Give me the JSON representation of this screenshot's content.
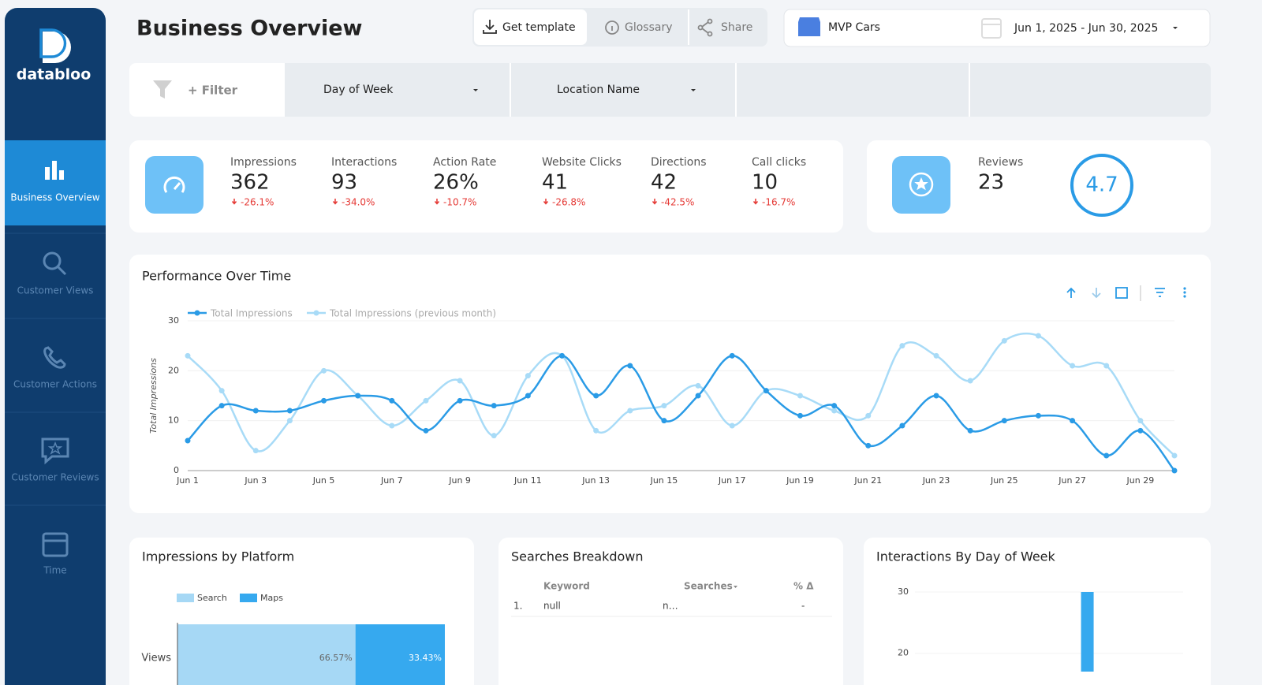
{
  "sidebar": {
    "brand": "databloo",
    "items": [
      "Business Overview",
      "Customer Views",
      "Customer Actions",
      "Customer Reviews",
      "Time"
    ]
  },
  "header": {
    "title": "Business Overview",
    "buttons": [
      "Get template",
      "Glossary",
      "Share"
    ],
    "account": "MVP Cars",
    "date_range": "Jun 1, 2025 - Jun 30, 2025"
  },
  "filters": {
    "add": "+ Filter",
    "dropdowns": [
      "Day of Week",
      "Location Name"
    ]
  },
  "kpis": [
    {
      "label": "Impressions",
      "value": "362",
      "change": "-26.1%"
    },
    {
      "label": "Interactions",
      "value": "93",
      "change": "-34.0%"
    },
    {
      "label": "Action Rate",
      "value": "26%",
      "change": "-10.7%"
    },
    {
      "label": "Website Clicks",
      "value": "41",
      "change": "-26.8%"
    },
    {
      "label": "Directions",
      "value": "42",
      "change": "-42.5%"
    },
    {
      "label": "Call clicks",
      "value": "10",
      "change": "-16.7%"
    }
  ],
  "reviews": {
    "label": "Reviews",
    "value": "23",
    "rating": "4.7"
  },
  "searches_table": {
    "title": "Searches Breakdown",
    "columns": [
      "Keyword",
      "Searches",
      "% Δ"
    ],
    "rows": [
      [
        "1.",
        "null",
        "n…",
        "-"
      ]
    ]
  },
  "chart_data": [
    {
      "type": "line",
      "title": "Performance Over Time",
      "y_label": "Total Impressions",
      "legend": "top-left",
      "grid": true,
      "categories": [
        "Jun 1",
        null,
        "Jun 3",
        null,
        "Jun 5",
        null,
        "Jun 7",
        null,
        "Jun 9",
        null,
        "Jun 11",
        null,
        "Jun 13",
        null,
        "Jun 15",
        null,
        "Jun 17",
        null,
        "Jun 19",
        null,
        "Jun 21",
        null,
        "Jun 23",
        null,
        "Jun 25",
        null,
        "Jun 27",
        null,
        "Jun 29",
        null
      ],
      "series": [
        {
          "name": "Total Impressions",
          "color": "#2a9be6",
          "values": [
            6,
            13,
            12,
            12,
            14,
            15,
            14,
            8,
            14,
            13,
            15,
            23,
            15,
            21,
            10,
            15,
            23,
            16,
            11,
            13,
            5,
            9,
            15,
            8,
            10,
            11,
            10,
            3,
            8,
            0
          ]
        },
        {
          "name": "Total Impressions (previous month)",
          "color": "#a8dbf7",
          "values": [
            23,
            16,
            4,
            10,
            20,
            15,
            9,
            14,
            18,
            7,
            19,
            23,
            8,
            12,
            13,
            17,
            9,
            16,
            15,
            12,
            11,
            25,
            23,
            18,
            26,
            27,
            21,
            21,
            10,
            3
          ]
        }
      ],
      "ylim": [
        0,
        30
      ],
      "yticks": [
        0,
        10,
        20,
        30
      ]
    },
    {
      "type": "bar",
      "orientation": "horizontal",
      "stacked": true,
      "title": "Impressions by Platform",
      "categories": [
        "Views"
      ],
      "series": [
        {
          "name": "Search",
          "color": "#a6d8f5",
          "values": [
            66.57
          ],
          "value_labels": [
            "66.57%"
          ]
        },
        {
          "name": "Maps",
          "color": "#36a9ef",
          "values": [
            33.43
          ],
          "value_labels": [
            "33.43%"
          ]
        }
      ],
      "xlim": [
        0,
        100
      ]
    },
    {
      "type": "bar",
      "title": "Interactions By Day of Week",
      "color": "#36a9ef",
      "categories": [
        null,
        null,
        null,
        null,
        null,
        null,
        null
      ],
      "values": [
        null,
        null,
        null,
        null,
        30,
        null,
        null
      ],
      "ylim": [
        17,
        30
      ],
      "yticks": [
        20,
        30
      ]
    }
  ]
}
